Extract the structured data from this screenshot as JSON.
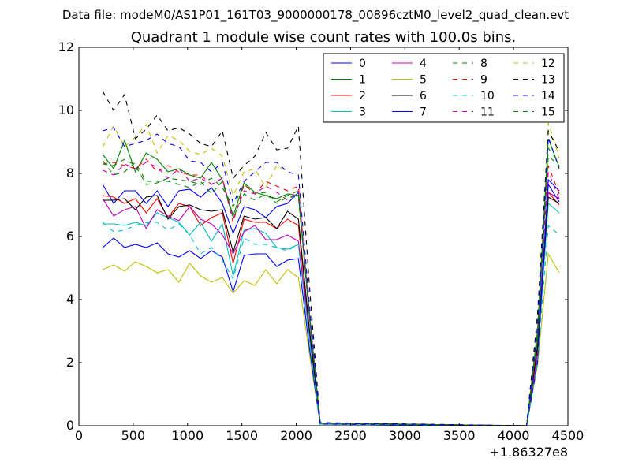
{
  "header": {
    "datafile": "Data file: modeM0/AS1P01_161T03_9000000178_00896cztM0_level2_quad_clean.evt"
  },
  "chart_data": {
    "type": "line",
    "title": "Quadrant 1 module wise count rates with 100.0s bins.",
    "xlabel": "",
    "ylabel": "",
    "x_offset_label": "+1.86327e8",
    "xlim": [
      0,
      4500
    ],
    "ylim": [
      0,
      12
    ],
    "xticks": [
      0,
      500,
      1000,
      1500,
      2000,
      2500,
      3000,
      3500,
      4000,
      4500
    ],
    "yticks": [
      0,
      2,
      4,
      6,
      8,
      10,
      12
    ],
    "grid": false,
    "legend_placement": "top-right",
    "legend_columns": 4,
    "x": [
      220,
      320,
      420,
      520,
      620,
      720,
      820,
      920,
      1020,
      1120,
      1220,
      1320,
      1420,
      1520,
      1620,
      1720,
      1820,
      1920,
      2020,
      2120,
      2220,
      4120,
      4220,
      4320,
      4420
    ],
    "series": [
      {
        "name": "0",
        "color": "#0000ff",
        "dash": "solid",
        "values": [
          7.65,
          7.05,
          7.45,
          7.45,
          7.05,
          7.45,
          6.95,
          7.45,
          7.5,
          7.25,
          7.55,
          7.05,
          6.1,
          6.95,
          6.85,
          6.6,
          6.95,
          7.05,
          7.4,
          3.5,
          0.08,
          0,
          2.5,
          7.65,
          7.1
        ]
      },
      {
        "name": "1",
        "color": "#008000",
        "dash": "solid",
        "values": [
          8.6,
          8.15,
          9.05,
          8.05,
          8.65,
          8.45,
          8.05,
          8.15,
          7.95,
          7.85,
          8.35,
          7.8,
          6.65,
          7.7,
          7.4,
          7.3,
          7.2,
          7.35,
          7.3,
          3.6,
          0.08,
          0,
          3.0,
          9.1,
          8.2
        ]
      },
      {
        "name": "2",
        "color": "#ff0000",
        "dash": "solid",
        "values": [
          7.3,
          7.25,
          7.05,
          7.2,
          6.75,
          7.2,
          6.6,
          7.05,
          6.95,
          6.35,
          6.6,
          6.75,
          5.15,
          6.55,
          6.45,
          6.45,
          6.25,
          6.55,
          6.35,
          3.0,
          0.08,
          0,
          2.4,
          7.4,
          7.0
        ]
      },
      {
        "name": "3",
        "color": "#00bfbf",
        "dash": "solid",
        "values": [
          6.4,
          6.4,
          6.35,
          6.45,
          6.35,
          6.75,
          6.6,
          6.45,
          6.05,
          6.45,
          5.85,
          6.4,
          4.75,
          6.2,
          6.25,
          6.1,
          5.65,
          5.6,
          5.75,
          2.8,
          0.08,
          0,
          2.1,
          7.05,
          6.75
        ]
      },
      {
        "name": "4",
        "color": "#bf00bf",
        "dash": "solid",
        "values": [
          7.2,
          6.65,
          6.85,
          6.95,
          6.25,
          6.85,
          6.65,
          6.5,
          6.95,
          6.55,
          6.4,
          6.05,
          5.45,
          6.15,
          6.35,
          5.9,
          5.9,
          6.05,
          5.85,
          3.0,
          0.08,
          0,
          2.2,
          7.4,
          7.2
        ]
      },
      {
        "name": "5",
        "color": "#bfbf00",
        "dash": "solid",
        "values": [
          4.95,
          5.1,
          4.9,
          5.2,
          5.05,
          4.85,
          4.95,
          4.55,
          5.15,
          4.75,
          4.55,
          4.7,
          4.2,
          4.6,
          4.45,
          4.95,
          4.5,
          4.95,
          4.7,
          2.3,
          0.05,
          0,
          1.9,
          5.45,
          4.85
        ]
      },
      {
        "name": "6",
        "color": "#000000",
        "dash": "solid",
        "values": [
          7.15,
          7.15,
          7.2,
          6.85,
          7.25,
          7.3,
          6.55,
          6.95,
          7.0,
          6.85,
          6.8,
          6.85,
          5.5,
          6.65,
          6.55,
          6.6,
          6.25,
          6.8,
          6.55,
          3.1,
          0.08,
          0,
          2.5,
          7.25,
          7.05
        ]
      },
      {
        "name": "7",
        "color": "#0000ff",
        "dash": "solid",
        "values": [
          5.65,
          5.95,
          5.65,
          5.75,
          5.65,
          5.8,
          5.45,
          5.35,
          5.55,
          5.3,
          5.55,
          5.35,
          4.25,
          5.4,
          5.45,
          5.45,
          5.05,
          5.25,
          5.3,
          2.5,
          0.05,
          0,
          2.0,
          7.8,
          7.45
        ]
      },
      {
        "name": "8",
        "color": "#008000",
        "dash": "dashed",
        "values": [
          8.3,
          8.25,
          8.45,
          8.25,
          7.65,
          7.7,
          7.85,
          7.8,
          7.75,
          7.65,
          7.85,
          7.55,
          6.95,
          7.65,
          7.35,
          7.4,
          7.1,
          7.3,
          7.45,
          3.6,
          0.08,
          0,
          2.8,
          8.55,
          8.25
        ]
      },
      {
        "name": "9",
        "color": "#ff0000",
        "dash": "dashed",
        "values": [
          8.3,
          8.35,
          8.25,
          8.15,
          8.45,
          8.05,
          8.25,
          8.05,
          7.95,
          7.95,
          7.65,
          7.85,
          6.45,
          7.65,
          7.35,
          7.75,
          7.6,
          7.45,
          7.6,
          3.6,
          0.08,
          0,
          2.7,
          8.25,
          7.35
        ]
      },
      {
        "name": "10",
        "color": "#00bfbf",
        "dash": "dashed",
        "values": [
          6.45,
          6.15,
          6.2,
          6.35,
          6.45,
          6.45,
          6.2,
          6.4,
          6.05,
          5.45,
          5.65,
          5.25,
          4.65,
          5.95,
          5.75,
          5.75,
          5.65,
          5.55,
          5.75,
          2.7,
          0.05,
          0,
          2.0,
          6.35,
          6.05
        ]
      },
      {
        "name": "11",
        "color": "#bf00bf",
        "dash": "dashed",
        "values": [
          8.1,
          7.95,
          8.3,
          8.15,
          8.35,
          8.2,
          7.85,
          8.15,
          7.75,
          7.85,
          7.65,
          7.85,
          6.55,
          7.45,
          7.35,
          7.6,
          7.4,
          7.15,
          7.45,
          3.6,
          0.08,
          0,
          2.7,
          8.05,
          7.2
        ]
      },
      {
        "name": "12",
        "color": "#bfbf00",
        "dash": "dashed",
        "values": [
          8.85,
          9.5,
          8.85,
          9.15,
          9.55,
          8.65,
          9.2,
          9.05,
          8.7,
          8.6,
          8.8,
          8.55,
          7.3,
          8.05,
          8.15,
          7.55,
          8.25,
          8.05,
          7.95,
          3.9,
          0.08,
          0,
          3.3,
          9.6,
          8.5
        ]
      },
      {
        "name": "13",
        "color": "#000000",
        "dash": "dashed",
        "values": [
          10.6,
          10.0,
          10.5,
          9.1,
          9.4,
          9.85,
          9.35,
          9.45,
          9.25,
          8.95,
          8.85,
          9.35,
          7.85,
          8.25,
          8.55,
          9.3,
          8.75,
          8.8,
          9.5,
          4.5,
          0.1,
          0,
          3.5,
          9.35,
          8.7
        ]
      },
      {
        "name": "14",
        "color": "#0000ff",
        "dash": "dashed",
        "values": [
          9.35,
          9.45,
          8.85,
          8.95,
          9.05,
          9.25,
          8.95,
          8.85,
          8.4,
          8.35,
          8.05,
          8.35,
          7.05,
          7.75,
          8.05,
          8.35,
          8.35,
          8.05,
          7.95,
          3.9,
          0.08,
          0,
          3.1,
          9.15,
          8.15
        ]
      },
      {
        "name": "15",
        "color": "#008000",
        "dash": "dashed",
        "values": [
          8.4,
          7.95,
          8.05,
          8.35,
          7.75,
          7.75,
          7.75,
          7.65,
          7.55,
          7.75,
          7.35,
          7.75,
          6.6,
          7.35,
          7.15,
          7.35,
          7.05,
          7.25,
          7.25,
          3.5,
          0.08,
          0,
          2.7,
          8.8,
          8.35
        ]
      }
    ]
  }
}
